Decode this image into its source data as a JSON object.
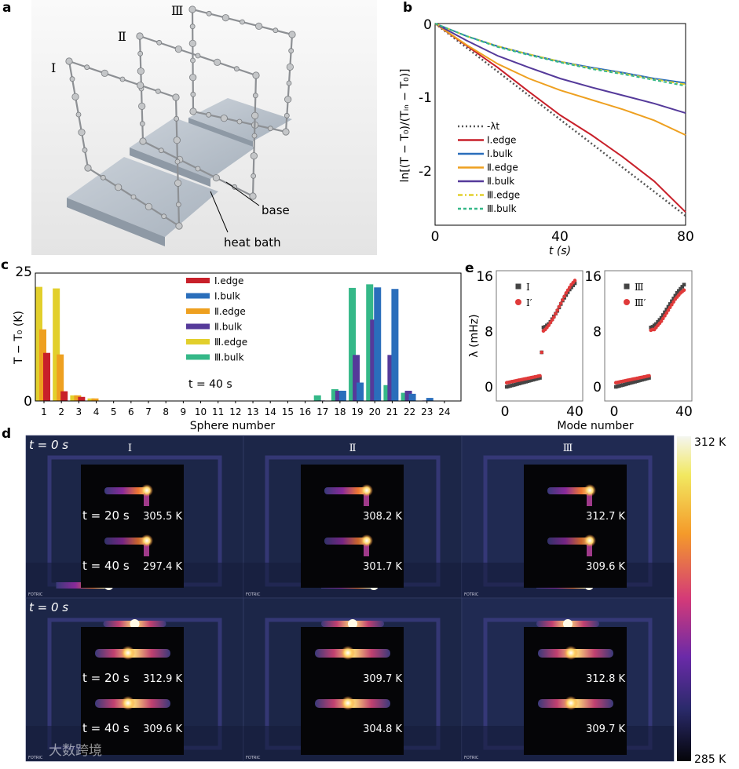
{
  "panel_labels": {
    "a": "a",
    "b": "b",
    "c": "c",
    "d": "d",
    "e": "e"
  },
  "panel_a": {
    "frame_labels": [
      "Ⅰ",
      "Ⅱ",
      "Ⅲ"
    ],
    "base_label": "base",
    "heat_bath_label": "heat bath"
  },
  "panel_d": {
    "column_labels": [
      "Ⅰ",
      "Ⅱ",
      "Ⅲ"
    ],
    "rows": [
      {
        "t0_label": "t = 0 s",
        "t20_label": "t = 20 s",
        "t40_label": "t = 40 s",
        "temps_20": [
          "305.5 K",
          "308.2 K",
          "312.7 K"
        ],
        "temps_40": [
          "297.4 K",
          "301.7 K",
          "309.6 K"
        ]
      },
      {
        "t0_label": "t = 0 s",
        "t20_label": "t = 20 s",
        "t40_label": "t = 40 s",
        "temps_20": [
          "312.9 K",
          "309.7 K",
          "312.8 K"
        ],
        "temps_40": [
          "309.6 K",
          "304.8 K",
          "309.7 K"
        ]
      }
    ],
    "camera_brand": "FOTRIC",
    "colorbar": {
      "max_label": "312 K",
      "min_label": "285 K",
      "max": 312,
      "min": 285
    }
  },
  "watermark": "大数跨境",
  "chart_data": [
    {
      "panel": "b",
      "type": "line",
      "xlabel": "t (s)",
      "ylabel": "ln[(T − T₀)/(Tᵢₙ − T₀)]",
      "xlim": [
        0,
        80
      ],
      "ylim": [
        -2.75,
        0
      ],
      "xticks": [
        "0",
        "40",
        "80"
      ],
      "yticks": [
        "0",
        "-1",
        "-2"
      ],
      "legend_position": "bottom-left",
      "x": [
        0,
        10,
        20,
        30,
        40,
        50,
        60,
        70,
        80
      ],
      "series": [
        {
          "name": "-λt",
          "color": "#555555",
          "style": "dotted",
          "values": [
            0,
            -0.327,
            -0.655,
            -0.982,
            -1.31,
            -1.637,
            -1.965,
            -2.292,
            -2.62
          ]
        },
        {
          "name": "Ⅰ.edge",
          "color": "#c8202a",
          "style": "solid",
          "values": [
            0,
            -0.3,
            -0.6,
            -0.93,
            -1.25,
            -1.52,
            -1.82,
            -2.15,
            -2.57
          ]
        },
        {
          "name": "Ⅰ.bulk",
          "color": "#2a6ebb",
          "style": "solid",
          "values": [
            0,
            -0.17,
            -0.31,
            -0.42,
            -0.52,
            -0.6,
            -0.67,
            -0.75,
            -0.81
          ]
        },
        {
          "name": "Ⅱ.edge",
          "color": "#eea020",
          "style": "solid",
          "values": [
            0,
            -0.29,
            -0.55,
            -0.75,
            -0.91,
            -1.04,
            -1.17,
            -1.32,
            -1.52
          ]
        },
        {
          "name": "Ⅱ.bulk",
          "color": "#553a9a",
          "style": "solid",
          "values": [
            0,
            -0.23,
            -0.44,
            -0.6,
            -0.75,
            -0.87,
            -0.98,
            -1.09,
            -1.22
          ]
        },
        {
          "name": "Ⅲ.edge",
          "color": "#e2cf2c",
          "style": "dashdot",
          "values": [
            0,
            -0.17,
            -0.31,
            -0.42,
            -0.52,
            -0.61,
            -0.68,
            -0.76,
            -0.83
          ]
        },
        {
          "name": "Ⅲ.bulk",
          "color": "#35b888",
          "style": "dashed",
          "values": [
            0,
            -0.17,
            -0.32,
            -0.43,
            -0.53,
            -0.62,
            -0.69,
            -0.77,
            -0.85
          ]
        }
      ]
    },
    {
      "panel": "c",
      "type": "bar",
      "xlabel": "Sphere number",
      "ylabel": "T − T₀ (K)",
      "ylim": [
        0,
        25
      ],
      "yticks": [
        "0",
        "25"
      ],
      "annotation": "t = 40 s",
      "legend_position": "top-center",
      "categories": [
        "1",
        "2",
        "3",
        "4",
        "5",
        "6",
        "7",
        "8",
        "9",
        "10",
        "11",
        "12",
        "13",
        "14",
        "15",
        "16",
        "17",
        "18",
        "19",
        "20",
        "21",
        "22",
        "23",
        "24"
      ],
      "series": [
        {
          "name": "Ⅲ.edge",
          "color": "#e2cf2c",
          "values": [
            22.3,
            22.0,
            1.1,
            0.5,
            0,
            0,
            0,
            0,
            0,
            0,
            0,
            0,
            0,
            0,
            0,
            0,
            0,
            0,
            0,
            0,
            0,
            0,
            0,
            0
          ]
        },
        {
          "name": "Ⅱ.edge",
          "color": "#eea020",
          "values": [
            14.0,
            9.1,
            1.1,
            0.5,
            0,
            0,
            0,
            0,
            0,
            0,
            0,
            0,
            0,
            0,
            0,
            0,
            0,
            0,
            0,
            0,
            0,
            0,
            0,
            0
          ]
        },
        {
          "name": "Ⅰ.edge",
          "color": "#c8202a",
          "values": [
            9.4,
            1.9,
            0.8,
            0,
            0,
            0,
            0,
            0,
            0,
            0,
            0,
            0,
            0,
            0,
            0,
            0,
            0,
            0,
            0,
            0,
            0,
            0,
            0,
            0
          ]
        },
        {
          "name": "Ⅲ.bulk",
          "color": "#35b888",
          "values": [
            0,
            0,
            0,
            0,
            0,
            0,
            0,
            0,
            0,
            0,
            0,
            0,
            0,
            0,
            0,
            0,
            1.1,
            2.3,
            22.1,
            22.8,
            3.1,
            1.6,
            0,
            0
          ]
        },
        {
          "name": "Ⅱ.bulk",
          "color": "#553a9a",
          "values": [
            0,
            0,
            0,
            0,
            0,
            0,
            0,
            0,
            0,
            0,
            0,
            0,
            0,
            0,
            0,
            0,
            0.1,
            2.0,
            9.0,
            15.9,
            9.0,
            2.0,
            0.1,
            0
          ]
        },
        {
          "name": "Ⅰ.bulk",
          "color": "#2a6ebb",
          "values": [
            0,
            0,
            0,
            0,
            0,
            0,
            0,
            0,
            0,
            0,
            0,
            0,
            0,
            0,
            0,
            0,
            0,
            2.0,
            3.6,
            22.2,
            21.9,
            1.4,
            0.6,
            0
          ]
        }
      ],
      "legend_order": [
        "Ⅰ.edge",
        "Ⅰ.bulk",
        "Ⅱ.edge",
        "Ⅱ.bulk",
        "Ⅲ.edge",
        "Ⅲ.bulk"
      ]
    },
    {
      "panel": "e",
      "type": "scatter",
      "xlabel": "Mode number",
      "ylabel": "λ (mHz)",
      "xlim": [
        -4,
        44
      ],
      "ylim": [
        -3,
        17
      ],
      "xticks": [
        "0",
        "40"
      ],
      "yticks": [
        "0",
        "8",
        "16"
      ],
      "subplots": [
        {
          "legend_position": "top-left",
          "series": [
            {
              "name": "Ⅰ",
              "marker": "square",
              "color": "#444444",
              "values": [
                0,
                0.07,
                0.14,
                0.21,
                0.27,
                0.34,
                0.41,
                0.48,
                0.55,
                0.62,
                0.68,
                0.75,
                0.82,
                0.89,
                0.96,
                1.03,
                1.09,
                1.16,
                1.23,
                1.3,
                5.0,
                8.6,
                8.7,
                8.9,
                9.1,
                9.4,
                9.8,
                10.2,
                10.6,
                11.0,
                11.5,
                12.0,
                12.5,
                12.9,
                13.3,
                13.7,
                14.1,
                14.4,
                14.7,
                15.0
              ]
            },
            {
              "name": "Ⅰ′",
              "marker": "circle",
              "color": "#e03a3a",
              "values": [
                0.6,
                0.65,
                0.71,
                0.76,
                0.81,
                0.86,
                0.92,
                0.97,
                1.02,
                1.07,
                1.13,
                1.18,
                1.23,
                1.28,
                1.34,
                1.39,
                1.44,
                1.49,
                1.55,
                1.6,
                5.0,
                8.1,
                8.3,
                8.6,
                8.9,
                9.3,
                9.7,
                10.1,
                10.6,
                11.1,
                11.6,
                12.1,
                12.6,
                13.1,
                13.6,
                14.0,
                14.4,
                14.8,
                15.1,
                15.4
              ]
            }
          ]
        },
        {
          "legend_position": "top-left",
          "series": [
            {
              "name": "Ⅲ",
              "marker": "square",
              "color": "#444444",
              "values": [
                0,
                0.07,
                0.14,
                0.21,
                0.27,
                0.34,
                0.41,
                0.48,
                0.55,
                0.62,
                0.68,
                0.75,
                0.82,
                0.89,
                0.96,
                1.03,
                1.09,
                1.16,
                1.23,
                1.3,
                8.6,
                8.7,
                8.9,
                9.1,
                9.4,
                9.7,
                10.0,
                10.4,
                10.8,
                11.2,
                11.6,
                12.0,
                12.4,
                12.8,
                13.2,
                13.6,
                13.9,
                14.2,
                14.5,
                14.8
              ]
            },
            {
              "name": "Ⅲ′",
              "marker": "circle",
              "color": "#e03a3a",
              "values": [
                0.6,
                0.65,
                0.71,
                0.76,
                0.81,
                0.86,
                0.92,
                0.97,
                1.02,
                1.07,
                1.13,
                1.18,
                1.23,
                1.28,
                1.34,
                1.39,
                1.44,
                1.49,
                1.55,
                1.6,
                8.2,
                8.3,
                8.3,
                8.6,
                8.9,
                9.2,
                9.5,
                9.9,
                10.3,
                10.7,
                11.1,
                11.5,
                11.9,
                12.3,
                12.7,
                13.0,
                13.3,
                13.6,
                13.8,
                14.0
              ]
            }
          ]
        }
      ]
    }
  ]
}
